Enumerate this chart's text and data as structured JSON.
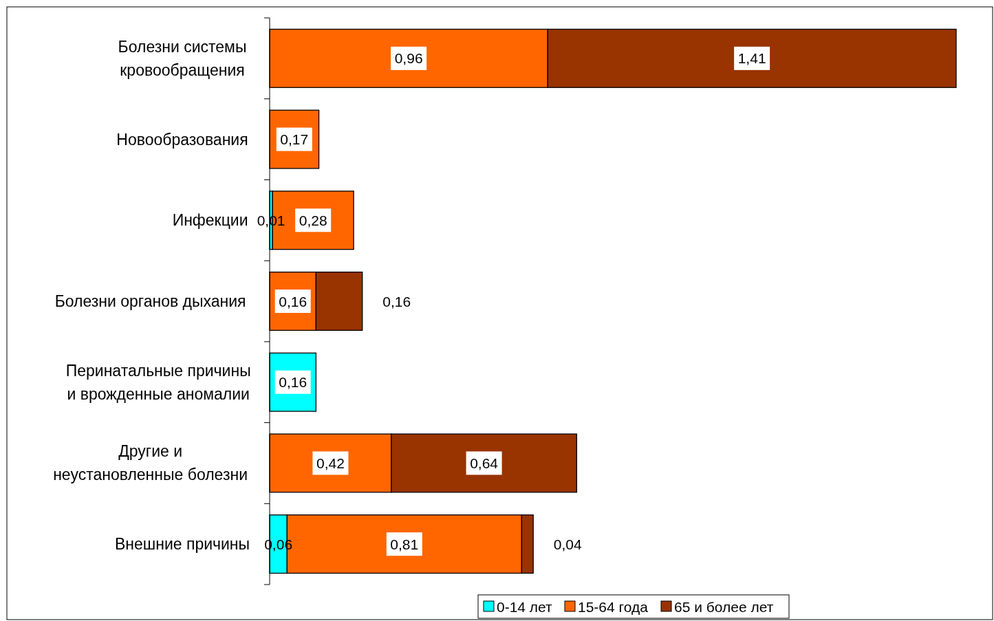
{
  "chart_data": {
    "type": "bar",
    "orientation": "horizontal",
    "stacked": true,
    "legend": "bottom",
    "categories": [
      "Болезни системы\nкровообращения",
      "Новообразования",
      "Инфекции",
      "Болезни органов дыхания",
      "Перинатальные причины\nи врожденные аномалии",
      "Другие и\nнеустановленные болезни",
      "Внешние причины"
    ],
    "series": [
      {
        "name": "0-14 лет",
        "color": "#00ffff",
        "values": [
          null,
          null,
          0.01,
          null,
          0.16,
          null,
          0.06
        ],
        "value_labels": [
          null,
          null,
          "0,01",
          null,
          "0,16",
          null,
          "0,06"
        ]
      },
      {
        "name": "15-64 года",
        "color": "#ff6600",
        "values": [
          0.96,
          0.17,
          0.28,
          0.16,
          null,
          0.42,
          0.81
        ],
        "value_labels": [
          "0,96",
          "0,17",
          "0,28",
          "0,16",
          null,
          "0,42",
          "0,81"
        ]
      },
      {
        "name": "65 и более лет",
        "color": "#993300",
        "values": [
          1.41,
          null,
          null,
          0.16,
          null,
          0.64,
          0.04
        ],
        "value_labels": [
          "1,41",
          null,
          null,
          "0,16",
          null,
          "0,64",
          "0,04"
        ]
      }
    ]
  }
}
